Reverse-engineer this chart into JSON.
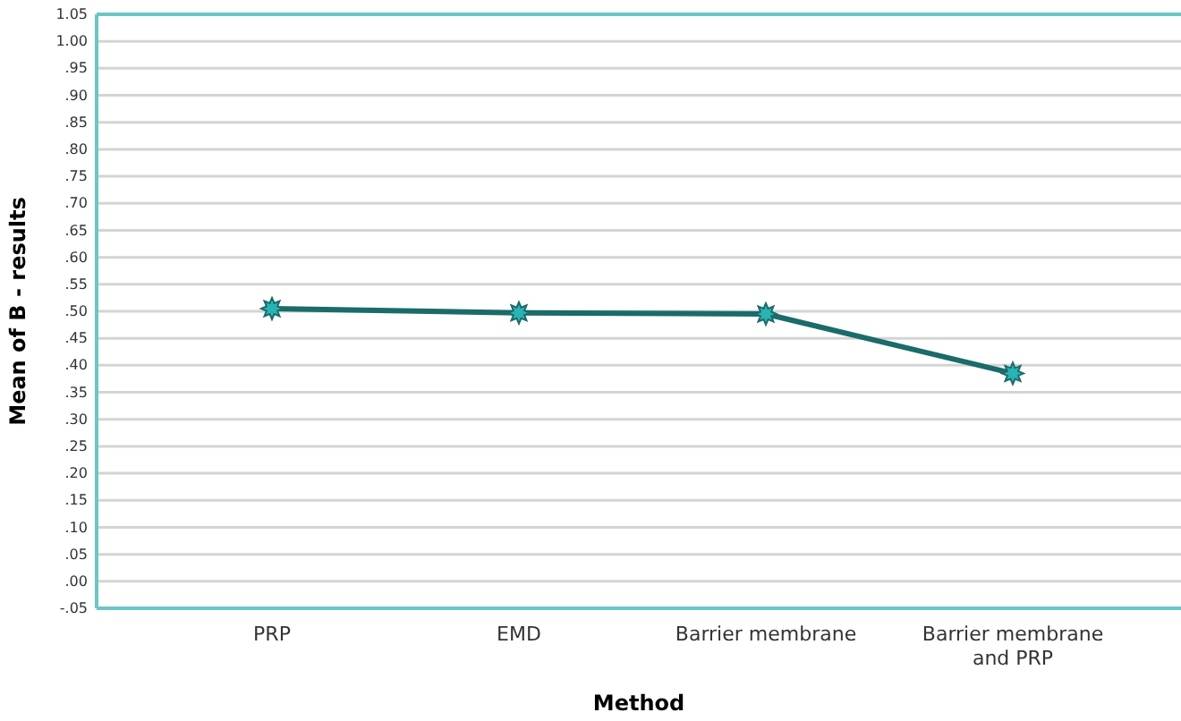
{
  "chart_data": {
    "type": "line",
    "xlabel": "Method",
    "ylabel": "Mean of B - results",
    "categories": [
      "PRP",
      "EMD",
      "Barrier membrane",
      "Barrier membrane and PRP"
    ],
    "series": [
      {
        "color": "#1b6b6b",
        "values": [
          0.505,
          0.497,
          0.495,
          0.385
        ]
      }
    ],
    "ylim": [
      -0.05,
      1.05
    ],
    "yticks": [
      {
        "value": -0.05,
        "label": "-.05"
      },
      {
        "value": 0,
        "label": ".00"
      },
      {
        "value": 0.05,
        "label": ".05"
      },
      {
        "value": 0.1,
        "label": ".10"
      },
      {
        "value": 0.15,
        "label": ".15"
      },
      {
        "value": 0.2,
        "label": ".20"
      },
      {
        "value": 0.25,
        "label": ".25"
      },
      {
        "value": 0.3,
        "label": ".30"
      },
      {
        "value": 0.35,
        "label": ".35"
      },
      {
        "value": 0.4,
        "label": ".40"
      },
      {
        "value": 0.45,
        "label": ".45"
      },
      {
        "value": 0.5,
        "label": ".50"
      },
      {
        "value": 0.55,
        "label": ".55"
      },
      {
        "value": 0.6,
        "label": ".60"
      },
      {
        "value": 0.65,
        "label": ".65"
      },
      {
        "value": 0.7,
        "label": ".70"
      },
      {
        "value": 0.75,
        "label": ".75"
      },
      {
        "value": 0.8,
        "label": ".80"
      },
      {
        "value": 0.85,
        "label": ".85"
      },
      {
        "value": 0.9,
        "label": ".90"
      },
      {
        "value": 0.95,
        "label": ".95"
      },
      {
        "value": 1,
        "label": "1.00"
      },
      1.05
    ],
    "grid": "y",
    "marker": "star",
    "line_style": "solid"
  }
}
